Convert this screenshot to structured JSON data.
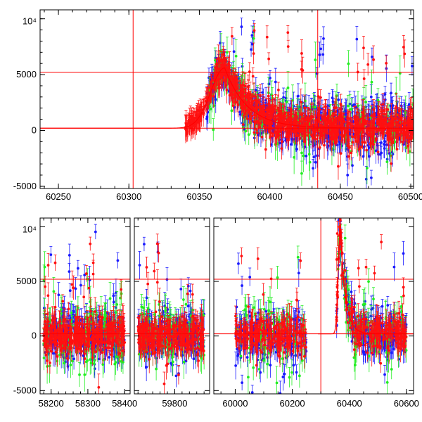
{
  "colors": {
    "blue_series": "#1a1aff",
    "green_series": "#22ee22",
    "red_series": "#ff1010",
    "reference_lines": "#ff0000",
    "axes": "#000000"
  },
  "chart_data": [
    {
      "type": "scatter",
      "panel": "top",
      "xlim": [
        60237,
        60502
      ],
      "ylim": [
        -5200,
        10800
      ],
      "x_ticks": [
        60250,
        60300,
        60350,
        60400,
        60450,
        60500
      ],
      "x_tick_labels": [
        "60250",
        "60300",
        "60350",
        "60400",
        "60450",
        "60500"
      ],
      "y_ticks": [
        -5000,
        0,
        5000,
        10000
      ],
      "y_tick_labels": [
        "-5000",
        "0",
        "5000",
        "10⁴"
      ],
      "grid": false,
      "error_bars": true,
      "reference_lines": {
        "horizontal": [
          200,
          5200
        ],
        "vertical": [
          60303,
          60434
        ]
      },
      "model_curve": {
        "baseline": 200,
        "peak_x": 60368,
        "peak_y": 5600,
        "rise_width": 14,
        "decay_width": 16
      },
      "series": [
        {
          "color": "blue",
          "x_range": [
            60355,
            60502
          ],
          "approx_points": 700
        },
        {
          "color": "green",
          "x_range": [
            60355,
            60502
          ],
          "approx_points": 180
        },
        {
          "color": "red",
          "x_range": [
            60340,
            60502
          ],
          "approx_points": 900
        }
      ]
    },
    {
      "type": "scatter",
      "panel": "bottom",
      "segments": [
        {
          "xlim": [
            58170,
            58415
          ],
          "x_ticks": [
            58200,
            58300,
            58400
          ],
          "x_tick_labels": [
            "58200",
            "58300",
            "58400"
          ]
        },
        {
          "xlim": [
            59690,
            59895
          ],
          "x_ticks": [
            59800
          ],
          "x_tick_labels": [
            "59800"
          ]
        },
        {
          "xlim": [
            59925,
            60625
          ],
          "x_ticks": [
            60000,
            60200,
            60400,
            60600
          ],
          "x_tick_labels": [
            "60000",
            "60200",
            "60400",
            "60600"
          ]
        }
      ],
      "ylim": [
        -5300,
        10800
      ],
      "y_ticks": [
        -5000,
        0,
        5000,
        10000
      ],
      "y_tick_labels": [
        "-5000",
        "0",
        "5000",
        "10⁴"
      ],
      "grid": false,
      "error_bars": true,
      "reference_lines": {
        "horizontal": [
          200,
          5200
        ],
        "vertical": [
          60300
        ]
      },
      "model_curve": {
        "baseline": 200,
        "peak_x": 60368,
        "peak_y": 10000,
        "rise_width": 10,
        "decay_width": 18
      },
      "series": [
        {
          "color": "blue",
          "x_ranges": [
            [
              58180,
              58400
            ],
            [
              59700,
              59880
            ],
            [
              60000,
              60250
            ],
            [
              60355,
              60600
            ]
          ]
        },
        {
          "color": "green",
          "x_ranges": [
            [
              58180,
              58400
            ],
            [
              59700,
              59880
            ],
            [
              60000,
              60250
            ],
            [
              60355,
              60600
            ]
          ]
        },
        {
          "color": "red",
          "x_ranges": [
            [
              58180,
              58400
            ],
            [
              59700,
              59880
            ],
            [
              60000,
              60250
            ],
            [
              60355,
              60600
            ]
          ]
        }
      ]
    }
  ]
}
